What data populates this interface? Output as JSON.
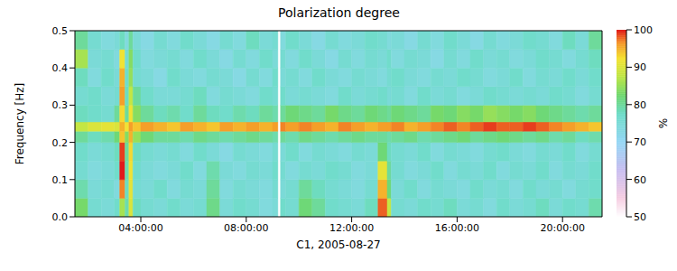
{
  "chart_data": {
    "type": "heatmap",
    "title": "Polarization degree",
    "x_label": "C1, 2005-08-27",
    "y_label": "Frequency [Hz]",
    "xlim": [
      1.5,
      21.5
    ],
    "xticks": [
      {
        "value": 4,
        "label": "04:00:00"
      },
      {
        "value": 8,
        "label": "08:00:00"
      },
      {
        "value": 12,
        "label": "12:00:00"
      },
      {
        "value": 16,
        "label": "16:00:00"
      },
      {
        "value": 20,
        "label": "20:00:00"
      }
    ],
    "ylim": [
      0,
      0.5
    ],
    "yticks": [
      {
        "value": 0,
        "label": "0.0"
      },
      0.1,
      0.2,
      0.3,
      0.4,
      0.5
    ],
    "grid": false,
    "cells": {
      "x_bins": [
        1.5,
        2,
        2.5,
        3,
        3.2,
        3.4,
        3.55,
        3.7,
        4,
        4.5,
        5,
        5.5,
        6,
        6.5,
        7,
        7.5,
        8,
        8.5,
        9,
        9.2,
        9.3,
        9.5,
        10,
        10.5,
        11,
        11.5,
        12,
        12.5,
        13,
        13.35,
        13.5,
        14,
        14.5,
        15,
        15.5,
        16,
        16.5,
        17,
        17.5,
        18,
        18.5,
        19,
        19.5,
        20,
        20.5,
        21,
        21.5
      ],
      "y_bins": [
        0,
        0.05,
        0.1,
        0.15,
        0.2,
        0.23,
        0.255,
        0.3,
        0.35,
        0.4,
        0.45,
        0.5
      ],
      "values": [
        [
          83,
          76,
          75,
          77,
          86,
          79,
          90,
          78,
          76,
          75,
          77,
          75,
          76,
          81,
          75,
          77,
          76,
          74,
          75,
          null,
          77,
          76,
          82,
          80,
          77,
          76,
          75,
          78,
          98,
          88,
          76,
          75,
          77,
          76,
          78,
          75,
          76,
          74,
          77,
          75,
          76,
          78,
          75,
          77,
          76,
          79
        ],
        [
          79,
          75,
          76,
          74,
          97,
          78,
          91,
          76,
          75,
          77,
          74,
          76,
          75,
          80,
          74,
          76,
          75,
          74,
          76,
          null,
          75,
          76,
          80,
          78,
          76,
          75,
          74,
          76,
          95,
          82,
          75,
          77,
          74,
          76,
          75,
          74,
          77,
          75,
          76,
          74,
          77,
          75,
          76,
          74,
          76,
          77
        ],
        [
          76,
          74,
          75,
          77,
          100,
          79,
          92,
          77,
          75,
          74,
          75,
          77,
          74,
          79,
          75,
          74,
          76,
          75,
          77,
          null,
          76,
          74,
          76,
          75,
          77,
          76,
          74,
          75,
          91,
          80,
          76,
          74,
          75,
          77,
          74,
          76,
          75,
          77,
          74,
          76,
          75,
          77,
          74,
          76,
          75,
          77
        ],
        [
          77,
          75,
          76,
          78,
          99,
          80,
          93,
          78,
          76,
          75,
          76,
          74,
          77,
          75,
          73,
          76,
          75,
          74,
          76,
          null,
          75,
          77,
          74,
          76,
          75,
          74,
          76,
          75,
          82,
          78,
          76,
          75,
          77,
          74,
          76,
          75,
          74,
          76,
          77,
          75,
          74,
          76,
          75,
          77,
          74,
          76
        ],
        [
          80,
          78,
          79,
          82,
          94,
          84,
          95,
          85,
          82,
          80,
          80,
          79,
          81,
          80,
          79,
          80,
          81,
          80,
          79,
          null,
          80,
          79,
          81,
          80,
          79,
          80,
          81,
          80,
          80,
          79,
          80,
          81,
          79,
          80,
          81,
          82,
          80,
          81,
          82,
          81,
          80,
          81,
          79,
          80,
          78,
          79
        ],
        [
          88,
          90,
          91,
          90,
          95,
          92,
          96,
          94,
          96,
          95,
          94,
          96,
          95,
          94,
          96,
          95,
          96,
          95,
          96,
          null,
          97,
          96,
          97,
          96,
          95,
          97,
          96,
          95,
          96,
          96,
          97,
          95,
          96,
          97,
          98,
          97,
          98,
          99,
          98,
          98,
          99,
          98,
          97,
          96,
          95,
          94
        ],
        [
          78,
          77,
          76,
          80,
          93,
          80,
          92,
          84,
          80,
          78,
          79,
          77,
          80,
          78,
          77,
          79,
          78,
          80,
          79,
          null,
          80,
          82,
          81,
          80,
          83,
          81,
          80,
          82,
          81,
          80,
          82,
          81,
          80,
          83,
          82,
          84,
          83,
          85,
          84,
          83,
          84,
          82,
          81,
          80,
          79,
          80
        ],
        [
          76,
          77,
          75,
          76,
          96,
          78,
          88,
          80,
          77,
          75,
          75,
          76,
          78,
          74,
          76,
          75,
          74,
          77,
          76,
          null,
          77,
          75,
          76,
          75,
          74,
          77,
          75,
          76,
          77,
          75,
          76,
          74,
          77,
          75,
          76,
          74,
          75,
          77,
          76,
          75,
          76,
          75,
          77,
          76,
          74,
          76
        ],
        [
          78,
          74,
          77,
          75,
          95,
          77,
          85,
          76,
          75,
          73,
          77,
          75,
          74,
          76,
          75,
          73,
          76,
          74,
          77,
          null,
          75,
          76,
          74,
          77,
          75,
          74,
          76,
          75,
          74,
          76,
          77,
          75,
          74,
          76,
          75,
          77,
          76,
          74,
          75,
          77,
          74,
          76,
          75,
          77,
          75,
          77
        ],
        [
          86,
          75,
          76,
          74,
          92,
          76,
          84,
          77,
          74,
          75,
          76,
          74,
          77,
          75,
          73,
          76,
          74,
          77,
          75,
          null,
          76,
          74,
          77,
          75,
          73,
          76,
          74,
          76,
          75,
          77,
          74,
          76,
          75,
          73,
          76,
          74,
          77,
          75,
          76,
          74,
          75,
          77,
          76,
          74,
          76,
          78
        ],
        [
          80,
          76,
          74,
          75,
          78,
          74,
          80,
          75,
          73,
          76,
          74,
          77,
          75,
          73,
          76,
          74,
          78,
          75,
          76,
          null,
          74,
          77,
          75,
          73,
          76,
          74,
          75,
          77,
          76,
          74,
          75,
          73,
          76,
          74,
          77,
          75,
          73,
          76,
          74,
          75,
          77,
          76,
          74,
          78,
          75,
          80
        ]
      ]
    },
    "colorbar": {
      "range": [
        50,
        100
      ],
      "ticks": [
        50,
        60,
        70,
        80,
        90,
        100
      ],
      "label": "%"
    }
  }
}
